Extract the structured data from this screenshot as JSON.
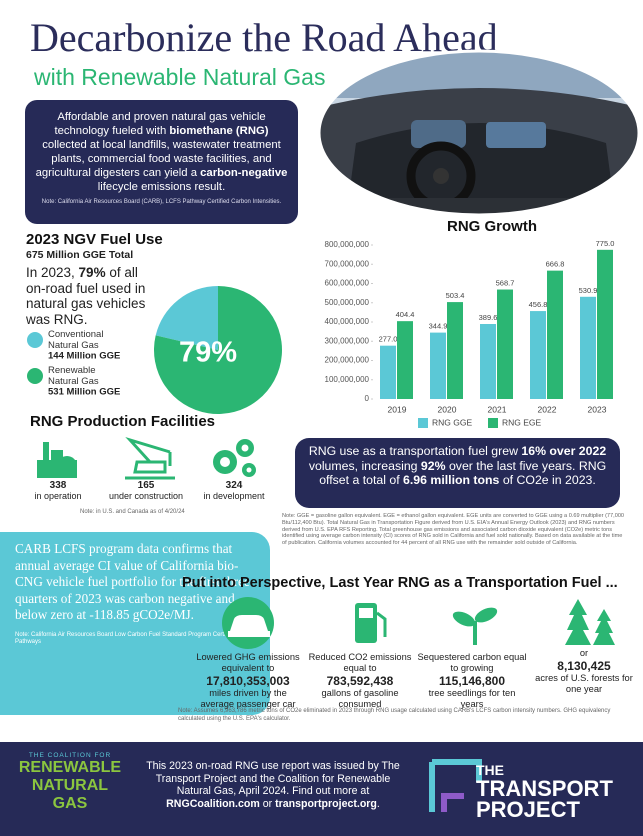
{
  "header": {
    "title": "Decarbonize the Road Ahead",
    "subtitle": "with Renewable Natural Gas"
  },
  "intro": {
    "runs": [
      "Affordable and proven natural gas vehicle technology fueled with ",
      "biomethane (RNG)",
      " collected at local landfills, wastewater treatment plants, commercial food waste facilities, and agricultural digesters can yield a ",
      "carbon-negative",
      " lifecycle emissions result."
    ],
    "note": "Note: California Air Resources Board (CARB), LCFS Pathway Certified Carbon Intensities."
  },
  "fuel_use": {
    "title": "2023 NGV Fuel Use",
    "total": "675 Million GGE Total",
    "runs": [
      "In 2023, ",
      "79%",
      " of all on-road fuel used in natural gas vehicles was RNG."
    ]
  },
  "chart_data": [
    {
      "type": "pie",
      "categories": [
        "Conventional Natural Gas",
        "Renewable Natural Gas"
      ],
      "values": [
        144,
        531
      ],
      "value_labels": [
        "144 Million GGE",
        "531 Million GGE"
      ],
      "colors": [
        "#5bc8d6",
        "#2bb673"
      ],
      "center_label": "79%"
    },
    {
      "type": "bar",
      "title": "RNG Growth",
      "categories": [
        "2019",
        "2020",
        "2021",
        "2022",
        "2023"
      ],
      "series": [
        {
          "name": "RNG GGE",
          "color": "#5bc8d6",
          "values": [
            277000000,
            344900000,
            389600000,
            456800000,
            530900000
          ],
          "value_labels": [
            "277.0",
            "344.9",
            "389.6",
            "456.8",
            "530.9"
          ]
        },
        {
          "name": "RNG EGE",
          "color": "#2bb673",
          "values": [
            404400000,
            503400000,
            568700000,
            666800000,
            775000000
          ],
          "value_labels": [
            "404.4",
            "503.4",
            "568.7",
            "666.8",
            "775.0"
          ]
        }
      ],
      "ylim": [
        0,
        800000000
      ],
      "yticks": [
        0,
        {
          "value": 100000000,
          "label": "100,000,000"
        },
        {
          "value": 200000000,
          "label": "200,000,000"
        },
        {
          "value": 300000000,
          "label": "300,000,000"
        },
        {
          "value": 400000000,
          "label": "400,000,000"
        },
        {
          "value": 500000000,
          "label": "500,000,000"
        },
        {
          "value": 600000000,
          "label": "600,000,000"
        },
        {
          "value": 700000000,
          "label": "700,000,000"
        },
        {
          "value": 800000000,
          "label": "800,000,000"
        }
      ],
      "grid": false,
      "legend": "bottom"
    }
  ],
  "facilities": {
    "title": "RNG Production Facilities",
    "items": [
      {
        "value": 338,
        "label": "in operation"
      },
      {
        "value": 165,
        "label": "under construction"
      },
      {
        "value": 324,
        "label": "in development"
      }
    ],
    "note": "Note: in U.S. and Canada as of 4/20/24"
  },
  "growth_callout": {
    "runs": [
      "RNG use as a transportation fuel grew ",
      "16% over 2022",
      " volumes, increasing ",
      "92%",
      " over the last five years. RNG offset a total of ",
      "6.96 million tons",
      " of CO2e in 2023."
    ]
  },
  "footnote": "Note: GGE = gasoline gallon equivalent. EGE = ethanol gallon equivalent. EGE units are converted to GGE using a 0.69 multiplier (77,000 Btu/112,400 Btu). Total Natural Gas in Transportation Figure derived from U.S. EIA's Annual Energy Outlook (2023) and RNG numbers derived from U.S. EPA RFS Reporting. Total greenhouse gas emissions and associated carbon dioxide equivalent (CO2e) metric tons identified using average carbon intensity (CI) scores of RNG sold in California and fuel sold nationally. Based on data available at the time of publication. California volumes accounted for 44 percent of all RNG use with the remainder sold outside of California.",
  "carb": {
    "text": "CARB LCFS program data confirms that annual average CI value of California bio-CNG vehicle fuel portfolio for the first three quarters of 2023 was carbon negative and below zero at -118.85 gCO2e/MJ.",
    "note": "Note: California Air Resources Board Low Carbon Fuel Standard Program Certified Fuel Pathways"
  },
  "perspective": {
    "title": "Put into Perspective, Last Year RNG as a Transportation Fuel ...",
    "items": [
      {
        "lead": "Lowered GHG emissions equivalent to",
        "value": "17,810,353,003",
        "tail": "miles driven by the average passenger car"
      },
      {
        "lead": "Reduced CO2 emissions equal to",
        "value": "783,592,438",
        "tail": "gallons of gasoline consumed"
      },
      {
        "lead": "Sequestered carbon equal to growing",
        "value": "115,146,800",
        "tail": "tree seedlings for ten years"
      },
      {
        "lead": "or",
        "value": "8,130,425",
        "tail": "acres of U.S. forests for one year"
      }
    ],
    "note": "Note: Assumes 6,963,786 metric tons of CO2e eliminated in 2023 through RNG usage calculated using CARB's LCFS carbon intensity numbers. GHG equivalency calculated using the U.S. EPA's calculator."
  },
  "footer": {
    "coalition_logo": {
      "top": "THE COALITION FOR",
      "name_1": "RENEWABLE",
      "name_2": "NATURAL GAS"
    },
    "runs": [
      "This 2023 on-road RNG use report was issued by The Transport Project and the Coalition for Renewable Natural Gas, April 2024. Find out more at ",
      "RNGCoalition.com",
      " or ",
      "transportproject.org",
      "."
    ],
    "transport_logo": {
      "top": "THE",
      "name_1": "TRANSPORT",
      "name_2": "PROJECT"
    }
  }
}
